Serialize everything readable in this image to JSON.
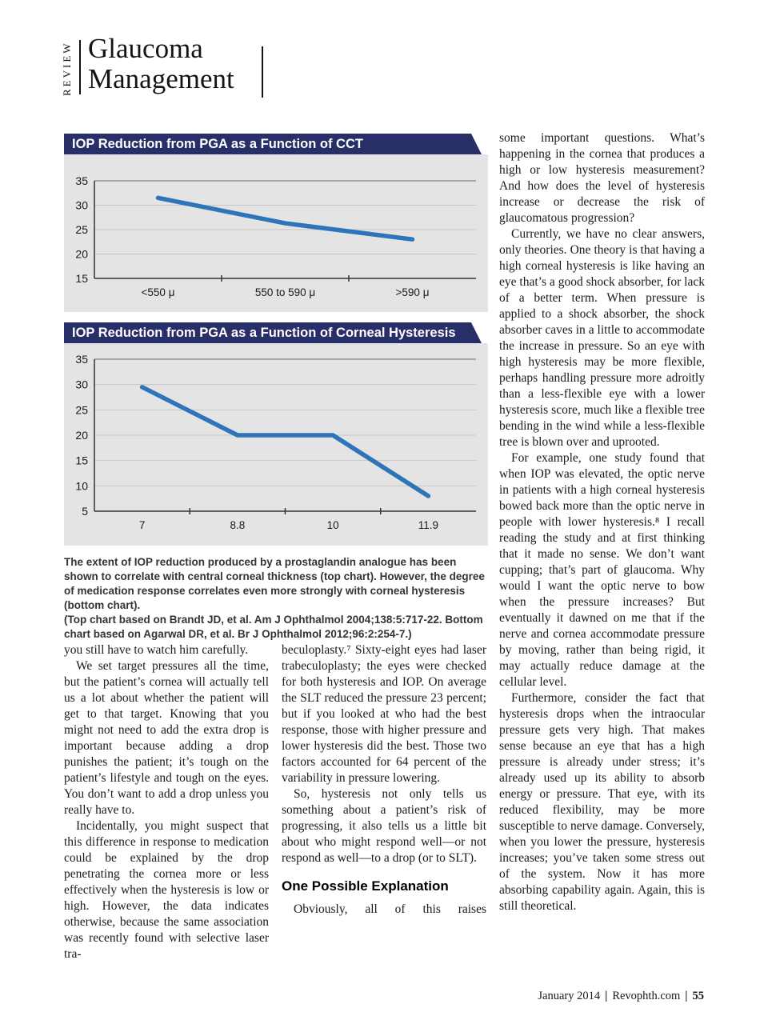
{
  "masthead": {
    "review_label": "REVIEW",
    "title_line1": "Glaucoma",
    "title_line2": "Management"
  },
  "colors": {
    "banner": "#272e68",
    "panel_bg": "#e4e4e4",
    "chart_line": "#2e74b8"
  },
  "chart_data": [
    {
      "type": "line",
      "title": "IOP Reduction from PGA as a Function of CCT",
      "categories": [
        "<550 μ",
        "550 to 590  μ",
        ">590  μ"
      ],
      "values": [
        31.5,
        26.3,
        23
      ],
      "ylim": [
        15,
        35
      ],
      "yticks": [
        15,
        20,
        25,
        30,
        35
      ],
      "xlabel": "",
      "ylabel": "",
      "grid": true,
      "legend": "none",
      "line_color": "#2e74b8"
    },
    {
      "type": "line",
      "title": "IOP Reduction from PGA as a Function of Corneal Hysteresis",
      "categories": [
        "7",
        "8.8",
        "10",
        "11.9"
      ],
      "values": [
        29.5,
        20,
        20,
        8
      ],
      "ylim": [
        5,
        35
      ],
      "yticks": [
        5,
        10,
        15,
        20,
        25,
        30,
        35
      ],
      "xlabel": "",
      "ylabel": "",
      "grid": true,
      "legend": "none",
      "line_color": "#2e74b8"
    }
  ],
  "caption": {
    "main": "The extent of IOP reduction produced by a prostaglandin analogue has been shown to correlate with central corneal thickness (top chart). However, the degree of medication response correlates even more strongly with corneal hysteresis (bottom chart).",
    "source": "(Top chart based on Brandt JD, et al. Am J Ophthalmol 2004;138:5:717-22. Bottom chart based on Agarwal DR, et al. Br J Ophthalmol 2012;96:2:254-7.)"
  },
  "columns": {
    "left": [
      "you still have to watch him carefully.",
      "We set target pressures all the time, but the patient’s cornea will actually tell us a lot about whether the patient will get to that target. Knowing that you might not need to add the extra drop is important because adding a drop punishes the patient; it’s tough on the patient’s lifestyle and tough on the eyes. You don’t want to add a drop unless you really have to.",
      "Incidentally, you might suspect that this difference in response to medication could be explained by the drop penetrating the cornea more or less effectively when the hysteresis is low or high. However, the data indicates otherwise, because the same association was recently found with selective laser tra-"
    ],
    "middle": [
      "beculoplasty.⁷ Sixty-eight eyes had laser trabeculoplasty; the eyes were checked for both hysteresis and IOP. On average the SLT reduced the pressure 23 percent; but if you looked at who had the best response, those with higher pressure and lower hysteresis did the best. Those two factors accounted for 64 percent of the variability in pressure lowering.",
      "So, hysteresis not only tells us something about a patient’s risk of progressing, it also tells us a little bit about who might respond well—or not respond as well—to a drop (or to SLT)."
    ],
    "middle_heading": "One Possible Explanation",
    "middle_after": [
      "Obviously, all of this raises"
    ],
    "right": [
      "some important questions. What’s happening in the cornea that produces a high or low hysteresis measurement? And how does the level of hysteresis increase or decrease the risk of glaucomatous progression?",
      "Currently, we have no clear answers, only theories. One theory is that having a high corneal hysteresis is like having an eye that’s a good shock absorber, for lack of a better term. When pressure is applied to a shock absorber, the shock absorber caves in a little to accommodate the increase in pressure. So an eye with high hysteresis may be more flexible, perhaps handling pressure more adroitly than a less-flexible eye with a lower hysteresis score, much like a flexible tree bending in the wind while a less-flexible tree is blown over and uprooted.",
      "For example, one study found that when IOP was elevated, the optic nerve in patients with a high corneal hysteresis bowed back more than the optic nerve in people with lower hysteresis.⁸ I recall reading the study and at first thinking that it made no sense. We don’t want cupping; that’s part of glaucoma. Why would I want the optic nerve to bow when the pressure increases? But eventually it dawned on me that if the nerve and cornea accommodate pressure by moving, rather than being rigid, it may actually reduce damage at the cellular level.",
      "Furthermore, consider the fact that hysteresis drops when the intraocular pressure gets very high. That makes sense because an eye that has a high pressure is already under stress; it’s already used up its ability to absorb energy or pressure. That eye, with its reduced flexibility, may be more susceptible to nerve damage. Conversely, when you lower the pressure, hysteresis increases; you’ve taken some stress out of the system. Now it has more absorbing capability again. Again, this is still theoretical."
    ]
  },
  "footer": {
    "date": "January 2014",
    "site": "Revophth.com",
    "separator": "|",
    "page_number": "55"
  }
}
